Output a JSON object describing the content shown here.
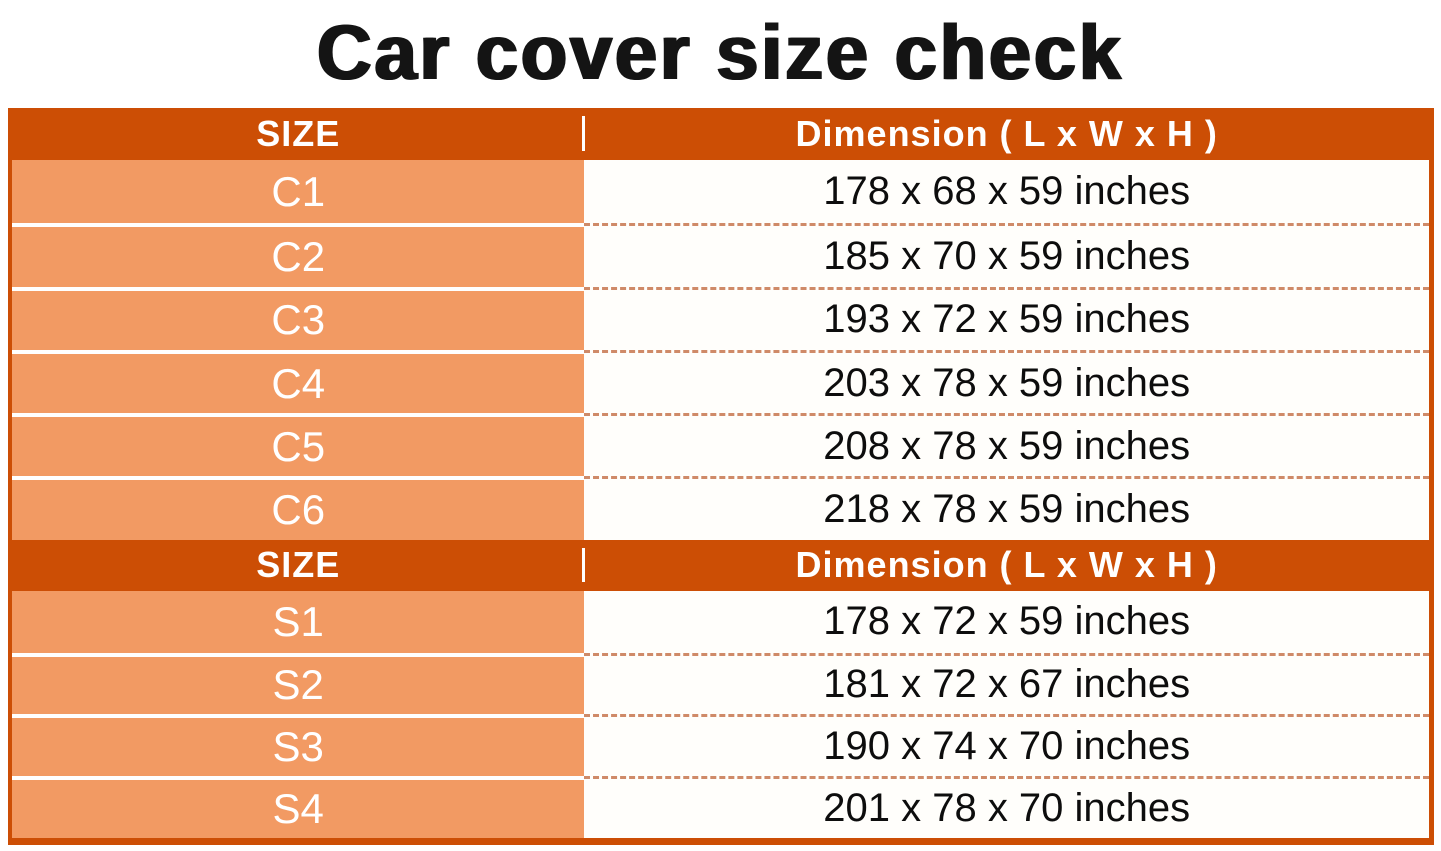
{
  "title": "Car cover size check",
  "colors": {
    "header_bg": "#cc4e05",
    "size_cell_bg": "#f29a63",
    "table_border": "#cc4e05",
    "dash_separator": "#cf8a68",
    "row_separator": "#ffffff",
    "header_text": "#ffffff",
    "size_text": "#ffffff",
    "dimension_text": "#0d0d0d",
    "title_text": "#141414"
  },
  "table": {
    "sections": [
      {
        "header": {
          "size_label": "SIZE",
          "dimension_label": "Dimension ( L x W x H )"
        },
        "rows": [
          {
            "size": "C1",
            "dimension": "178 x 68 x 59 inches"
          },
          {
            "size": "C2",
            "dimension": "185 x 70 x 59 inches"
          },
          {
            "size": "C3",
            "dimension": "193 x 72 x 59 inches"
          },
          {
            "size": "C4",
            "dimension": "203 x 78 x 59 inches"
          },
          {
            "size": "C5",
            "dimension": "208 x 78 x 59 inches"
          },
          {
            "size": "C6",
            "dimension": "218 x 78 x 59 inches"
          }
        ]
      },
      {
        "header": {
          "size_label": "SIZE",
          "dimension_label": "Dimension ( L x W x H )"
        },
        "rows": [
          {
            "size": "S1",
            "dimension": "178 x 72 x 59 inches"
          },
          {
            "size": "S2",
            "dimension": "181 x 72 x 67 inches"
          },
          {
            "size": "S3",
            "dimension": "190 x 74 x 70 inches"
          },
          {
            "size": "S4",
            "dimension": "201 x 78 x 70 inches"
          }
        ]
      }
    ]
  }
}
